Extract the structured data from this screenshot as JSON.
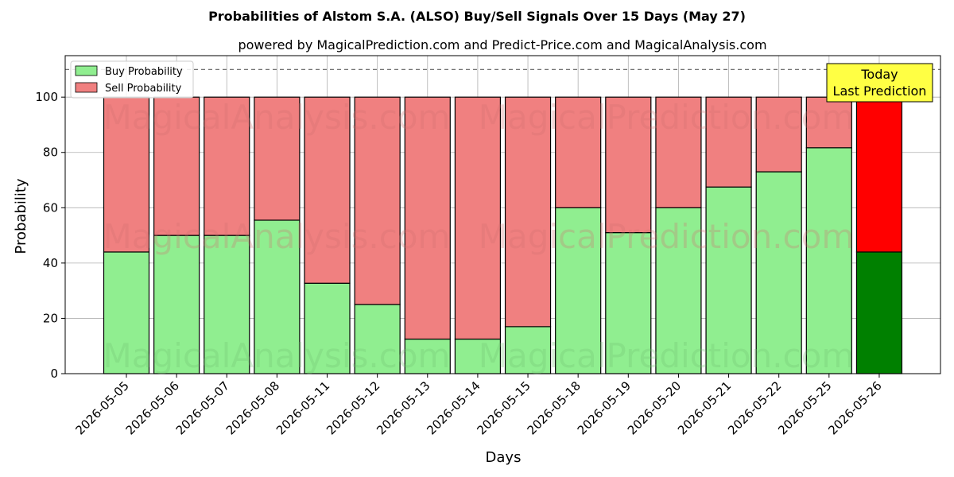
{
  "title": "Probabilities of Alstom S.A. (ALSO) Buy/Sell Signals Over 15 Days (May 27)",
  "subtitle": "powered by MagicalPrediction.com and Predict-Price.com and MagicalAnalysis.com",
  "watermarks": [
    "MagicalAnalysis.com",
    "MagicalPrediction.com"
  ],
  "annotation": {
    "line1": "Today",
    "line2": "Last Prediction",
    "bg": "#ffff44"
  },
  "colors": {
    "buy": "#90ee90",
    "sell": "#f08080",
    "today_buy": "#008000",
    "today_sell": "#ff0000",
    "grid": "#b0b0b0",
    "watermark_sell": "#d27070",
    "watermark_buy": "#70c070"
  },
  "chart_data": {
    "type": "bar",
    "stacked": true,
    "xlabel": "Days",
    "ylabel": "Probability",
    "ylim": [
      0,
      115
    ],
    "yticks": [
      0,
      20,
      40,
      60,
      80,
      100
    ],
    "reference_line": 110,
    "grid": true,
    "legend_position": "top-left",
    "categories": [
      "2026-05-05",
      "2026-05-06",
      "2026-05-07",
      "2026-05-08",
      "2026-05-11",
      "2026-05-12",
      "2026-05-13",
      "2026-05-14",
      "2026-05-15",
      "2026-05-18",
      "2026-05-19",
      "2026-05-20",
      "2026-05-21",
      "2026-05-22",
      "2026-05-25",
      "2026-05-26"
    ],
    "series": [
      {
        "name": "Buy Probability",
        "values": [
          44,
          50,
          50,
          55.5,
          32.7,
          25,
          12.5,
          12.5,
          17,
          60,
          51,
          60,
          67.5,
          73,
          81.7,
          44
        ]
      },
      {
        "name": "Sell Probability",
        "values": [
          56,
          50,
          50,
          44.5,
          67.3,
          75,
          87.5,
          87.5,
          83,
          40,
          49,
          40,
          32.5,
          27,
          18.3,
          56
        ]
      }
    ]
  }
}
